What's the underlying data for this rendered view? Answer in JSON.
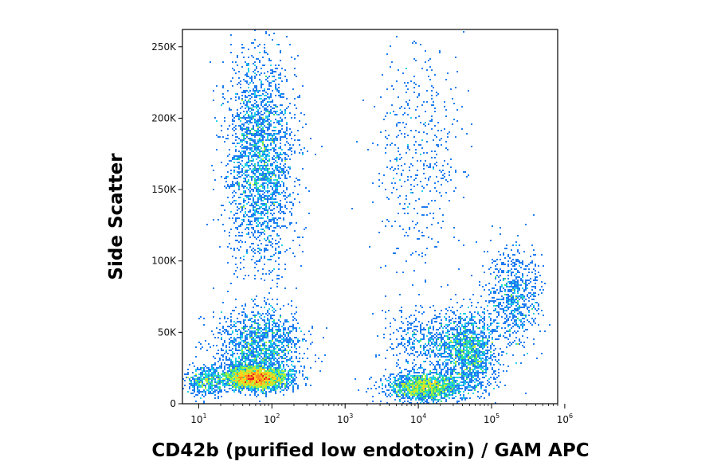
{
  "chart_data": {
    "type": "scatter",
    "subtype": "flow-cytometry density dot plot",
    "xlabel": "CD42b (purified low endotoxin) / GAM APC",
    "ylabel": "Side Scatter",
    "x_scale": "log",
    "x_range": [
      6,
      800000
    ],
    "y_range": [
      0,
      262144
    ],
    "x_ticks": [
      {
        "value": 10,
        "base": "10",
        "exp": "1"
      },
      {
        "value": 100,
        "base": "10",
        "exp": "2"
      },
      {
        "value": 1000,
        "base": "10",
        "exp": "3"
      },
      {
        "value": 10000,
        "base": "10",
        "exp": "4"
      },
      {
        "value": 100000,
        "base": "10",
        "exp": "5"
      },
      {
        "value": 1000000,
        "base": "10",
        "exp": "6"
      }
    ],
    "y_ticks": [
      {
        "value": 0,
        "label": "0"
      },
      {
        "value": 50000,
        "label": "50K"
      },
      {
        "value": 100000,
        "label": "100K"
      },
      {
        "value": 150000,
        "label": "150K"
      },
      {
        "value": 200000,
        "label": "200K"
      },
      {
        "value": 250000,
        "label": "250K"
      }
    ],
    "density_colors": [
      "#1a1ad6",
      "#1e7cf0",
      "#22d0e8",
      "#3ce07a",
      "#b4f03c",
      "#ffd21e",
      "#ff8c1e",
      "#e61e1e"
    ],
    "populations": [
      {
        "x_center": 60,
        "y_center": 18000,
        "x_log_sd": 0.22,
        "y_sd": 4000,
        "weight": 3000,
        "note": "CD42b-negative low SSC, densest"
      },
      {
        "x_center": 70,
        "y_center": 40000,
        "x_log_sd": 0.3,
        "y_sd": 13000,
        "weight": 1400
      },
      {
        "x_center": 70,
        "y_center": 170000,
        "x_log_sd": 0.22,
        "y_sd": 38000,
        "weight": 2400,
        "note": "high SSC negative population"
      },
      {
        "x_center": 12000,
        "y_center": 12000,
        "x_log_sd": 0.25,
        "y_sd": 5000,
        "weight": 1600,
        "note": "CD42b-positive cluster"
      },
      {
        "x_center": 50000,
        "y_center": 35000,
        "x_log_sd": 0.2,
        "y_sd": 14000,
        "weight": 1300,
        "note": "positive tail rising"
      },
      {
        "x_center": 200000,
        "y_center": 75000,
        "x_log_sd": 0.18,
        "y_sd": 18000,
        "weight": 700
      },
      {
        "x_center": 15000,
        "y_center": 45000,
        "x_log_sd": 0.3,
        "y_sd": 10000,
        "weight": 500
      },
      {
        "x_center": 10000,
        "y_center": 170000,
        "x_log_sd": 0.3,
        "y_sd": 40000,
        "weight": 450,
        "note": "sparse high SSC positive"
      },
      {
        "x_center": 12,
        "y_center": 16000,
        "x_log_sd": 0.12,
        "y_sd": 5000,
        "weight": 400,
        "note": "on-axis streak"
      }
    ],
    "grid": false,
    "legend": "none"
  }
}
